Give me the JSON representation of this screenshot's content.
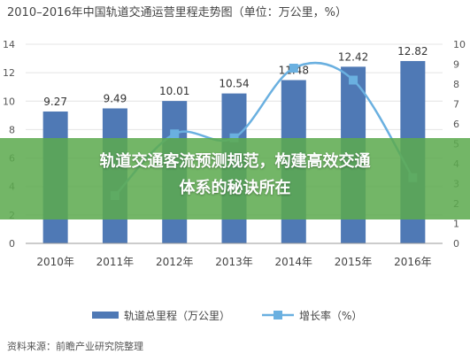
{
  "chart_data": {
    "type": "bar",
    "title": "2010–2016年中国轨道交通运营里程走势图（单位：万公里，%）",
    "categories": [
      "2010年",
      "2011年",
      "2012年",
      "2013年",
      "2014年",
      "2015年",
      "2016年"
    ],
    "series": [
      {
        "name": "轨道总里程（万公里）",
        "type": "bar",
        "axis": "left",
        "values": [
          9.27,
          9.49,
          10.01,
          10.54,
          11.48,
          12.42,
          12.82
        ],
        "color": "#4f79b5"
      },
      {
        "name": "增长率（%）",
        "type": "line",
        "axis": "right",
        "values": [
          null,
          2.4,
          5.5,
          5.3,
          8.8,
          8.2,
          3.3
        ],
        "color": "#6ab0e0"
      }
    ],
    "data_labels": [
      "9.27",
      "9.49",
      "10.01",
      "10.54",
      "11.48",
      "12.42",
      "12.82"
    ],
    "y_left": {
      "ylim": [
        0,
        14
      ],
      "ticks": [
        "0",
        "2",
        "4",
        "6",
        "8",
        "10",
        "12",
        "14"
      ]
    },
    "y_right": {
      "ylim": [
        0,
        10
      ],
      "ticks": [
        "0",
        "1",
        "2",
        "3",
        "4",
        "5",
        "6",
        "7",
        "8",
        "9",
        "10"
      ]
    },
    "grid": true,
    "legend_position": "bottom"
  },
  "legend": {
    "bar_label": "轨道总里程（万公里）",
    "line_label": "增长率（%）"
  },
  "banner": {
    "line1": "轨道交通客流预测规范，构建高效交通",
    "line2": "体系的秘诀所在"
  },
  "source": "资料来源：前瞻产业研究院整理"
}
